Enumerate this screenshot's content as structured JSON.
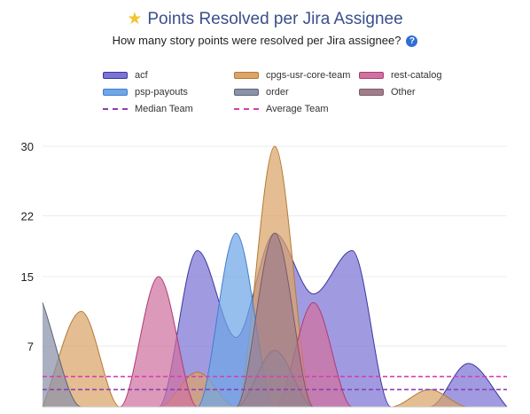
{
  "header": {
    "title": "Points Resolved per Jira Assignee",
    "subtitle": "How many story points were resolved per Jira assignee?",
    "title_icon": "star-icon",
    "help_icon": "question-icon"
  },
  "chart_data": {
    "type": "area",
    "title": "Points Resolved per Jira Assignee",
    "subtitle": "How many story points were resolved per Jira assignee?",
    "ylim": [
      0,
      30
    ],
    "y_ticks": [
      "30",
      "22",
      "15",
      "7"
    ],
    "y_tick_values": [
      30,
      22,
      15,
      7
    ],
    "x": [
      0,
      1,
      2,
      3,
      4,
      5,
      6,
      7,
      8,
      9,
      10,
      11,
      12
    ],
    "grid": true,
    "legend_position": "top",
    "series": [
      {
        "name": "acf",
        "color": "#7c74d4",
        "stroke": "#3b35a0",
        "values": [
          0,
          0,
          0,
          0,
          18,
          8,
          20,
          13,
          18,
          0,
          0,
          5,
          0
        ]
      },
      {
        "name": "cpgs-usr-core-team",
        "color": "#dba468",
        "stroke": "#b47a35",
        "values": [
          0,
          11,
          0,
          0,
          4,
          0,
          30,
          0,
          0,
          0,
          2,
          0,
          0
        ]
      },
      {
        "name": "rest-catalog",
        "color": "#d0729e",
        "stroke": "#b03a78",
        "values": [
          0,
          0,
          0,
          15,
          0,
          0,
          0,
          12,
          0,
          0,
          0,
          0,
          0
        ]
      },
      {
        "name": "psp-payouts",
        "color": "#6fa6e6",
        "stroke": "#3e7fcf",
        "values": [
          0,
          0,
          0,
          0,
          0,
          20,
          0,
          0,
          0,
          0,
          0,
          0,
          0
        ]
      },
      {
        "name": "order",
        "color": "#8a92a8",
        "stroke": "#5b6379",
        "values": [
          12,
          0,
          0,
          0,
          0,
          0,
          6.5,
          0,
          0,
          0,
          0,
          0,
          0
        ]
      },
      {
        "name": "Other",
        "color": "#a07e8c",
        "stroke": "#7a5a68",
        "values": [
          0,
          0,
          0,
          0,
          0,
          0,
          20,
          0,
          0,
          0,
          0,
          0,
          0
        ]
      }
    ],
    "reference_lines": [
      {
        "name": "Median Team",
        "color": "#8e3fb5",
        "value": 2
      },
      {
        "name": "Average Team",
        "color": "#d63fb5",
        "value": 3.5
      }
    ]
  }
}
